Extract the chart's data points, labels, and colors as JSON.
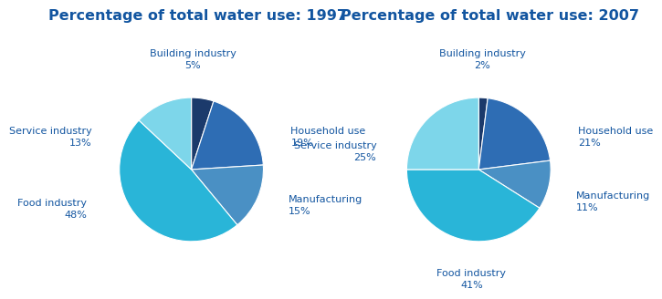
{
  "title_1997": "Percentage of total water use: 1997",
  "title_2007": "Percentage of total water use: 2007",
  "title_color": "#1255a0",
  "title_fontsize": 11.5,
  "background_color": "#ffffff",
  "values_1997": [
    5,
    19,
    15,
    48,
    13
  ],
  "labels_1997": [
    "Building industry",
    "Household use",
    "Manufacturing",
    "Food industry",
    "Service industry"
  ],
  "pct_1997": [
    "5%",
    "19%",
    "15%",
    "48%",
    "13%"
  ],
  "colors_1997": [
    "#1b3a6b",
    "#2e6db4",
    "#4a90c4",
    "#29b5d8",
    "#7dd6ea"
  ],
  "values_2007": [
    2,
    21,
    11,
    41,
    25
  ],
  "labels_2007": [
    "Building industry",
    "Household use",
    "Manufacturing",
    "Food industry",
    "Service industry"
  ],
  "pct_2007": [
    "2%",
    "21%",
    "11%",
    "41%",
    "25%"
  ],
  "colors_2007": [
    "#1b3a6b",
    "#2e6db4",
    "#4a90c4",
    "#29b5d8",
    "#7dd6ea"
  ],
  "label_color": "#1255a0",
  "label_fontsize": 8.0,
  "startangle": 90
}
